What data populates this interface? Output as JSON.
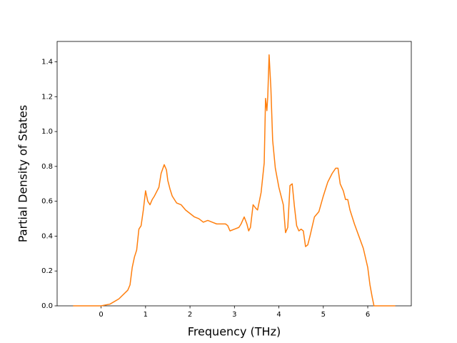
{
  "chart_data": {
    "type": "line",
    "x_label": "Frequency (THz)",
    "y_label": "Partial Density of States",
    "x": [
      -0.63,
      0,
      0.2,
      0.4,
      0.6,
      0.65,
      0.7,
      0.75,
      0.8,
      0.85,
      0.9,
      0.95,
      1.0,
      1.05,
      1.1,
      1.15,
      1.2,
      1.3,
      1.35,
      1.42,
      1.47,
      1.5,
      1.55,
      1.6,
      1.7,
      1.8,
      1.9,
      2.0,
      2.1,
      2.2,
      2.3,
      2.4,
      2.5,
      2.6,
      2.7,
      2.8,
      2.85,
      2.9,
      3.0,
      3.1,
      3.15,
      3.22,
      3.28,
      3.32,
      3.36,
      3.42,
      3.48,
      3.52,
      3.6,
      3.67,
      3.7,
      3.73,
      3.75,
      3.78,
      3.82,
      3.86,
      3.92,
      4.0,
      4.1,
      4.15,
      4.2,
      4.25,
      4.3,
      4.35,
      4.4,
      4.45,
      4.5,
      4.55,
      4.6,
      4.65,
      4.7,
      4.8,
      4.9,
      5.0,
      5.1,
      5.2,
      5.28,
      5.33,
      5.38,
      5.45,
      5.5,
      5.55,
      5.6,
      5.7,
      5.8,
      5.9,
      6.0,
      6.05,
      6.1,
      6.14,
      6.3,
      6.62
    ],
    "values": [
      0,
      0,
      0.01,
      0.04,
      0.09,
      0.12,
      0.22,
      0.28,
      0.32,
      0.44,
      0.46,
      0.55,
      0.66,
      0.6,
      0.58,
      0.61,
      0.63,
      0.68,
      0.76,
      0.81,
      0.78,
      0.72,
      0.67,
      0.63,
      0.59,
      0.58,
      0.55,
      0.53,
      0.51,
      0.5,
      0.48,
      0.49,
      0.48,
      0.47,
      0.47,
      0.47,
      0.46,
      0.43,
      0.44,
      0.45,
      0.47,
      0.51,
      0.47,
      0.43,
      0.45,
      0.58,
      0.56,
      0.55,
      0.65,
      0.82,
      1.19,
      1.12,
      1.2,
      1.44,
      1.25,
      0.95,
      0.79,
      0.68,
      0.58,
      0.42,
      0.45,
      0.69,
      0.7,
      0.57,
      0.46,
      0.43,
      0.44,
      0.43,
      0.34,
      0.35,
      0.4,
      0.51,
      0.54,
      0.63,
      0.71,
      0.76,
      0.79,
      0.79,
      0.7,
      0.66,
      0.61,
      0.61,
      0.55,
      0.47,
      0.4,
      0.33,
      0.22,
      0.12,
      0.05,
      0,
      0,
      0
    ],
    "color": "#ff7f0e",
    "xlim": [
      -0.99,
      6.98
    ],
    "xticks": [
      0,
      1,
      2,
      3,
      4,
      5,
      6
    ],
    "ylim": [
      0,
      1.517
    ],
    "yticks": [
      {
        "value": 0,
        "label": "0.0"
      },
      {
        "value": 0.2,
        "label": "0.2"
      },
      {
        "value": 0.4,
        "label": "0.4"
      },
      {
        "value": 0.6,
        "label": "0.6"
      },
      {
        "value": 0.8,
        "label": "0.8"
      },
      {
        "value": 1.0,
        "label": "1.0"
      },
      {
        "value": 1.2,
        "label": "1.2"
      },
      {
        "value": 1.4,
        "label": "1.4"
      }
    ]
  }
}
